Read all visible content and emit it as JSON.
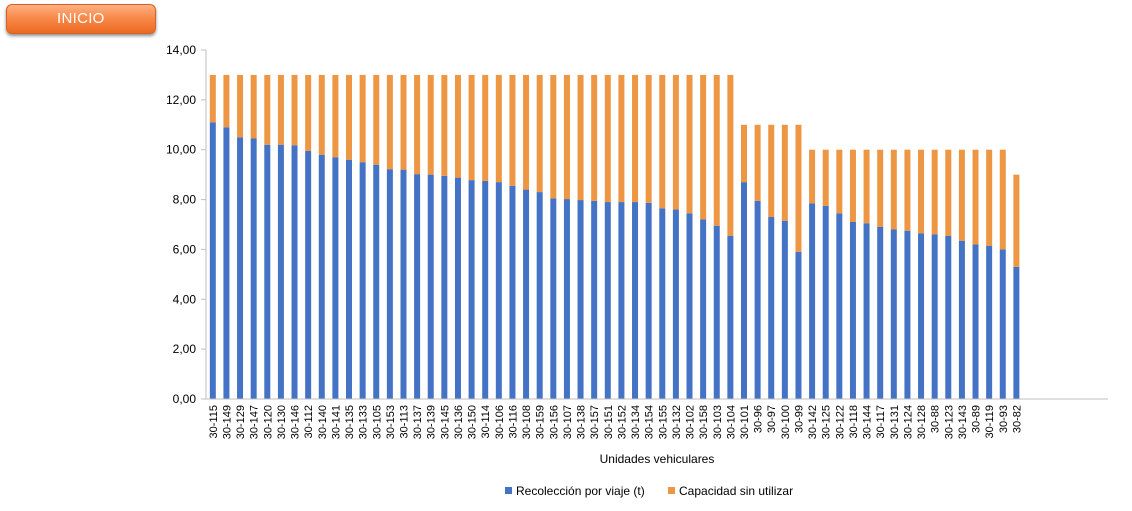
{
  "nav": {
    "inicio_label": "INICIO"
  },
  "colors": {
    "button": "#f7843f",
    "recoleccion": "#4472c4",
    "capacidad": "#ed9643",
    "axis": "#bfbfbf"
  },
  "chart_data": {
    "type": "bar",
    "stacked": true,
    "xlabel": "Unidades vehiculares",
    "ylabel": "",
    "ylim": [
      0,
      14
    ],
    "yticks": [
      "0,00",
      "2,00",
      "4,00",
      "6,00",
      "8,00",
      "10,00",
      "12,00",
      "14,00"
    ],
    "grid": false,
    "legend_position": "bottom",
    "categories": [
      "30-115",
      "30-149",
      "30-129",
      "30-147",
      "30-120",
      "30-130",
      "30-146",
      "30-112",
      "30-140",
      "30-141",
      "30-135",
      "30-133",
      "30-105",
      "30-153",
      "30-113",
      "30-137",
      "30-139",
      "30-145",
      "30-136",
      "30-150",
      "30-114",
      "30-106",
      "30-116",
      "30-108",
      "30-159",
      "30-156",
      "30-107",
      "30-138",
      "30-157",
      "30-151",
      "30-152",
      "30-134",
      "30-154",
      "30-155",
      "30-132",
      "30-102",
      "30-158",
      "30-103",
      "30-104",
      "30-101",
      "30-96",
      "30-97",
      "30-100",
      "30-99",
      "30-142",
      "30-125",
      "30-122",
      "30-118",
      "30-144",
      "30-117",
      "30-131",
      "30-124",
      "30-128",
      "30-88",
      "30-123",
      "30-143",
      "30-89",
      "30-119",
      "30-93",
      "30-82"
    ],
    "series": [
      {
        "name": "Recolección por viaje (t)",
        "values": [
          11.1,
          10.9,
          10.5,
          10.45,
          10.2,
          10.2,
          10.18,
          9.95,
          9.8,
          9.7,
          9.6,
          9.5,
          9.4,
          9.22,
          9.2,
          9.02,
          9.0,
          8.95,
          8.88,
          8.78,
          8.75,
          8.7,
          8.55,
          8.4,
          8.3,
          8.05,
          8.02,
          7.98,
          7.95,
          7.9,
          7.9,
          7.9,
          7.87,
          7.65,
          7.6,
          7.45,
          7.2,
          6.95,
          6.55,
          8.7,
          7.95,
          7.3,
          7.15,
          5.9,
          7.85,
          7.75,
          7.45,
          7.1,
          7.05,
          6.9,
          6.8,
          6.75,
          6.65,
          6.6,
          6.55,
          6.35,
          6.2,
          6.15,
          6.0,
          5.3
        ]
      },
      {
        "name": "Capacidad sin utilizar",
        "values": [
          1.9,
          2.1,
          2.5,
          2.55,
          2.8,
          2.8,
          2.82,
          3.05,
          3.2,
          3.3,
          3.4,
          3.5,
          3.6,
          3.78,
          3.8,
          3.98,
          4.0,
          4.05,
          4.12,
          4.22,
          4.25,
          4.3,
          4.45,
          4.6,
          4.7,
          4.95,
          4.98,
          5.02,
          5.05,
          5.1,
          5.1,
          5.1,
          5.13,
          5.35,
          5.4,
          5.55,
          5.8,
          6.05,
          6.45,
          2.3,
          3.05,
          3.7,
          3.85,
          5.1,
          2.15,
          2.25,
          2.55,
          2.9,
          2.95,
          3.1,
          3.2,
          3.25,
          3.35,
          3.4,
          3.45,
          3.65,
          3.8,
          3.85,
          4.0,
          3.7
        ]
      }
    ]
  }
}
